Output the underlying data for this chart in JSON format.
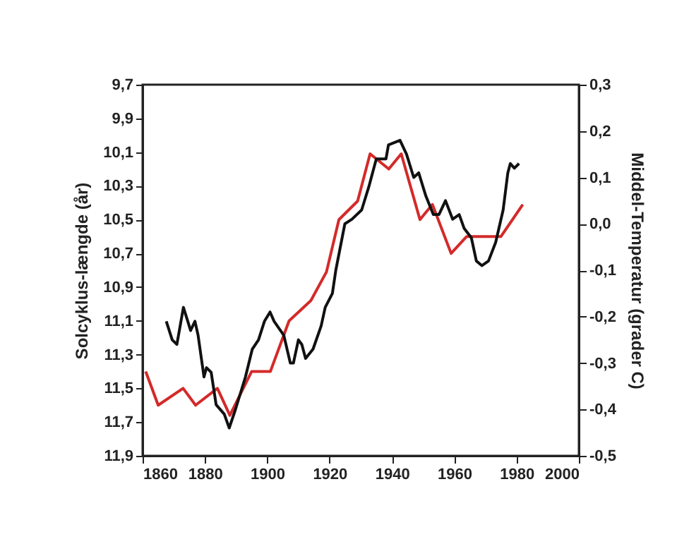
{
  "chart_data": {
    "type": "line",
    "ylabel": "Solcyklus-længde (år)",
    "y2label": "Middel-Temperatur (grader C)",
    "xlim": [
      1860,
      2000
    ],
    "xticks": [
      1860,
      1880,
      1900,
      1920,
      1940,
      1960,
      1980,
      2000
    ],
    "ylim": [
      11.9,
      9.7
    ],
    "yticks": [
      {
        "value": 9.7,
        "label": "9,7"
      },
      {
        "value": 9.9,
        "label": "9,9"
      },
      {
        "value": 10.1,
        "label": "10,1"
      },
      {
        "value": 10.3,
        "label": "10,3"
      },
      {
        "value": 10.5,
        "label": "10,5"
      },
      {
        "value": 10.7,
        "label": "10,7"
      },
      {
        "value": 10.9,
        "label": "10,9"
      },
      {
        "value": 11.1,
        "label": "11,1"
      },
      {
        "value": 11.3,
        "label": "11,3"
      },
      {
        "value": 11.5,
        "label": "11,5"
      },
      {
        "value": 11.7,
        "label": "11,7"
      },
      {
        "value": 11.9,
        "label": "11,9"
      }
    ],
    "y2lim": [
      -0.5,
      0.3
    ],
    "y2ticks": [
      {
        "value": -0.5,
        "label": "-0,5"
      },
      {
        "value": -0.4,
        "label": "-0,4"
      },
      {
        "value": -0.3,
        "label": "-0,3"
      },
      {
        "value": -0.2,
        "label": "-0,2"
      },
      {
        "value": -0.1,
        "label": "-0,1"
      },
      {
        "value": 0,
        "label": "0,0"
      },
      {
        "value": 0.1,
        "label": "0,1"
      },
      {
        "value": 0.2,
        "label": "0,2"
      },
      {
        "value": 0.3,
        "label": "0,3"
      }
    ],
    "grid": false,
    "series": [
      {
        "color": "#d42a2a",
        "axis": "y",
        "x": [
          1861,
          1865,
          1873,
          1877,
          1884,
          1888,
          1895,
          1901,
          1907,
          1914,
          1919,
          1923,
          1929,
          1933,
          1939,
          1943,
          1949,
          1953,
          1959,
          1964,
          1975,
          1982
        ],
        "values": [
          11.4,
          11.6,
          11.5,
          11.6,
          11.5,
          11.66,
          11.4,
          11.4,
          11.1,
          10.98,
          10.81,
          10.5,
          10.39,
          10.11,
          10.2,
          10.11,
          10.5,
          10.41,
          10.7,
          10.6,
          10.6,
          10.41
        ]
      },
      {
        "color": "#111111",
        "axis": "y2",
        "x": [
          1867.6,
          1869.5,
          1871,
          1873.1,
          1874.5,
          1875.4,
          1876.8,
          1877.8,
          1879.7,
          1880.5,
          1882,
          1883.6,
          1886.2,
          1887.8,
          1889.8,
          1893,
          1895.2,
          1897.2,
          1899.1,
          1900.9,
          1902.2,
          1905.3,
          1907.4,
          1908.4,
          1910,
          1911.1,
          1912.3,
          1914.7,
          1917.3,
          1918.6,
          1920.9,
          1922,
          1924.9,
          1927.2,
          1930.3,
          1932.6,
          1935,
          1938.1,
          1938.9,
          1942.6,
          1944.7,
          1947,
          1948.6,
          1950.9,
          1953.3,
          1955.1,
          1957.2,
          1959.5,
          1961.6,
          1963.2,
          1965.5,
          1967.1,
          1968.9,
          1971,
          1973.3,
          1975.7,
          1977.2,
          1978,
          1979.3,
          1980.8
        ],
        "values": [
          -0.21,
          -0.25,
          -0.26,
          -0.18,
          -0.21,
          -0.23,
          -0.21,
          -0.24,
          -0.33,
          -0.31,
          -0.32,
          -0.39,
          -0.41,
          -0.44,
          -0.4,
          -0.33,
          -0.27,
          -0.25,
          -0.21,
          -0.19,
          -0.21,
          -0.24,
          -0.3,
          -0.3,
          -0.25,
          -0.26,
          -0.29,
          -0.27,
          -0.22,
          -0.18,
          -0.15,
          -0.1,
          0,
          0.01,
          0.03,
          0.08,
          0.14,
          0.14,
          0.17,
          0.18,
          0.15,
          0.1,
          0.11,
          0.06,
          0.02,
          0.02,
          0.05,
          0.01,
          0.02,
          -0.01,
          -0.03,
          -0.08,
          -0.09,
          -0.08,
          -0.04,
          0.03,
          0.11,
          0.13,
          0.12,
          0.13
        ]
      }
    ]
  }
}
